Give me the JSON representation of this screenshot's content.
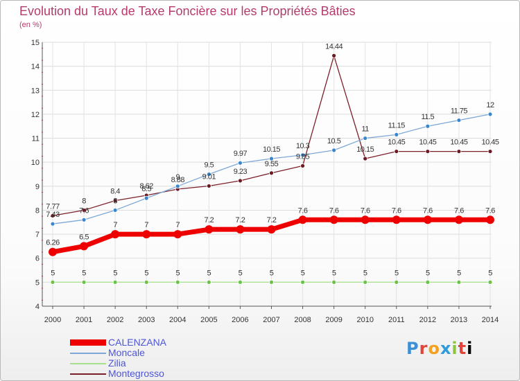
{
  "title": "Evolution du Taux de Taxe Foncière sur les Propriétés Bâties",
  "unit_label": "(en %)",
  "logo_text": "Proxiti",
  "chart_data": {
    "type": "line",
    "title": "Evolution du Taux de Taxe Foncière sur les Propriétés Bâties",
    "ylabel": "(en %)",
    "xlabel": "",
    "ylim": [
      4,
      15
    ],
    "yticks": [
      "4",
      "5",
      "6",
      "7",
      "8",
      "9",
      "10",
      "11",
      "12",
      "13",
      "14",
      "15"
    ],
    "categories": [
      "2000",
      "2001",
      "2002",
      "2003",
      "2004",
      "2005",
      "2006",
      "2007",
      "2008",
      "2009",
      "2010",
      "2011",
      "2012",
      "2013",
      "2014"
    ],
    "legend_position": "bottom-left",
    "series": [
      {
        "name": "Montegrosso",
        "color": "#7b1f2a",
        "dot_color": "#6a1c25",
        "values": [
          7.77,
          8,
          8.4,
          8.62,
          8.88,
          9.01,
          9.23,
          9.55,
          9.85,
          14.44,
          10.15,
          10.45,
          10.45,
          10.45,
          10.45
        ],
        "labels": [
          "7.77",
          "8",
          "8.4",
          "8.62",
          "8.88",
          "9.01",
          "9.23",
          "9.55",
          "9.85",
          "14.44",
          "10.15",
          "10.45",
          "10.45",
          "10.45",
          "10.45"
        ]
      },
      {
        "name": "Moncale",
        "color": "#7da8d8",
        "dot_color": "#3a86cc",
        "values": [
          7.43,
          7.6,
          8,
          8.5,
          9,
          9.5,
          9.97,
          10.15,
          10.3,
          10.5,
          11,
          11.15,
          11.5,
          11.75,
          12
        ],
        "labels": [
          "7.43",
          "7.6",
          "8",
          "8.5",
          "9",
          "9.5",
          "9.97",
          "10.15",
          "10.3",
          "10.5",
          "11",
          "11.15",
          "11.5",
          "11.75",
          "12"
        ]
      },
      {
        "name": "Zilia",
        "color": "#a6e08a",
        "dot_color": "#6cc24a",
        "values": [
          5,
          5,
          5,
          5,
          5,
          5,
          5,
          5,
          5,
          5,
          5,
          5,
          5,
          5,
          5
        ],
        "labels": [
          "5",
          "5",
          "5",
          "5",
          "5",
          "5",
          "5",
          "5",
          "5",
          "5",
          "5",
          "5",
          "5",
          "5",
          "5"
        ]
      },
      {
        "name": "CALENZANA",
        "color": "#ee0000",
        "dot_color": "#ee0000",
        "values": [
          6.26,
          6.5,
          7,
          7,
          7,
          7.2,
          7.2,
          7.2,
          7.6,
          7.6,
          7.6,
          7.6,
          7.6,
          7.6,
          7.6
        ],
        "labels": [
          "6.26",
          "6.5",
          "7",
          "7",
          "7",
          "7.2",
          "7.2",
          "7.2",
          "7.6",
          "7.6",
          "7.6",
          "7.6",
          "7.6",
          "7.6",
          "7.6"
        ]
      }
    ],
    "legend": [
      "CALENZANA",
      "Moncale",
      "Zilia",
      "Montegrosso"
    ]
  }
}
